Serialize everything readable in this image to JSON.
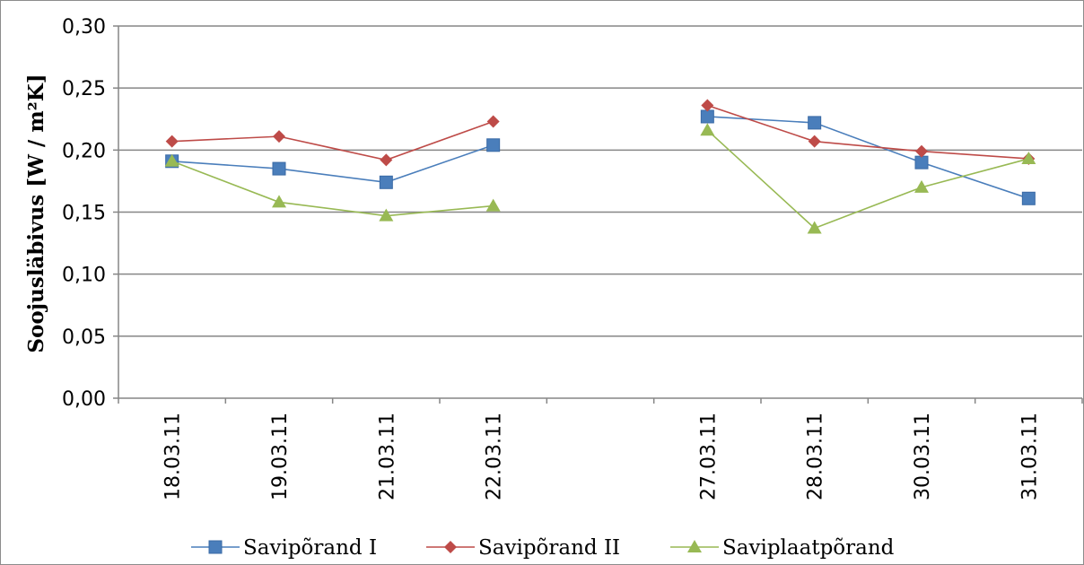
{
  "chart_data": {
    "type": "line",
    "title": "",
    "xlabel": "",
    "ylabel": "Soojusläbivus [W / m²K]",
    "ylim": [
      0,
      0.3
    ],
    "y_ticks": [
      "0,00",
      "0,05",
      "0,10",
      "0,15",
      "0,20",
      "0,25",
      "0,30"
    ],
    "y_tick_values": [
      0,
      0.05,
      0.1,
      0.15,
      0.2,
      0.25,
      0.3
    ],
    "grid": true,
    "legend_position": "bottom",
    "categories": [
      "18.03.11",
      "19.03.11",
      "21.03.11",
      "22.03.11",
      "",
      "27.03.11",
      "28.03.11",
      "30.03.11",
      "31.03.11"
    ],
    "series": [
      {
        "name": "Savipõrand I",
        "color": "#4a7ebb",
        "marker": "square",
        "values": [
          0.191,
          0.185,
          0.174,
          0.204,
          null,
          0.227,
          0.222,
          0.19,
          0.161
        ]
      },
      {
        "name": "Savipõrand II",
        "color": "#be4b48",
        "marker": "diamond",
        "values": [
          0.207,
          0.211,
          0.192,
          0.223,
          null,
          0.236,
          0.207,
          0.199,
          0.193
        ]
      },
      {
        "name": "Saviplaatpõrand",
        "color": "#98b954",
        "marker": "triangle",
        "values": [
          0.191,
          0.158,
          0.147,
          0.155,
          null,
          0.216,
          0.137,
          0.17,
          0.193
        ]
      }
    ]
  }
}
